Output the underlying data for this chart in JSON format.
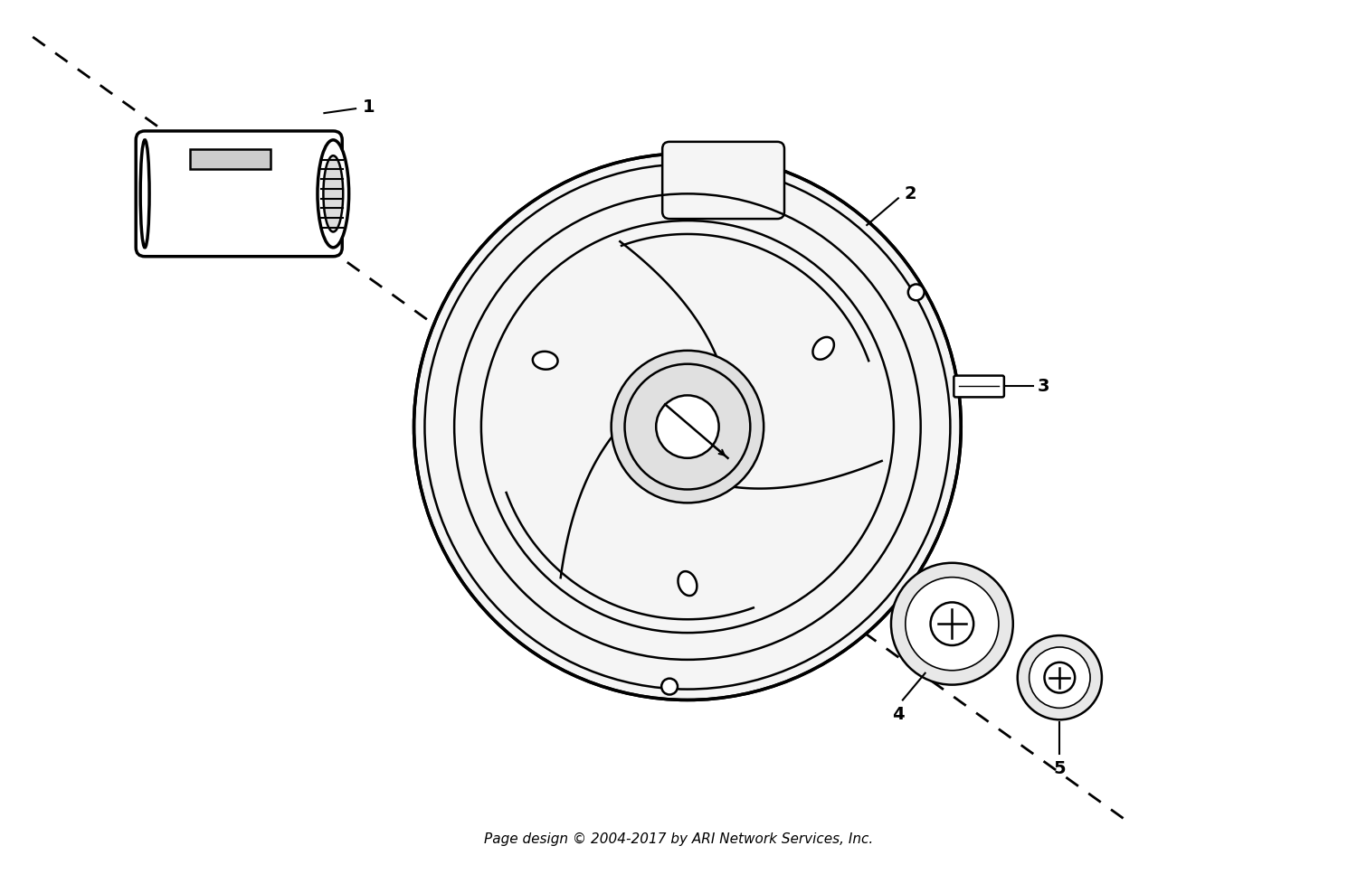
{
  "background_color": "#ffffff",
  "line_color": "#000000",
  "text_color": "#000000",
  "watermark_color": "#cccccc",
  "footer_text": "Page design © 2004-2017 by ARI Network Services, Inc.",
  "footer_fontsize": 11,
  "part_labels": [
    "1",
    "2",
    "3",
    "4",
    "5"
  ],
  "label_fontsize": 14,
  "fig_width": 15.0,
  "fig_height": 9.67
}
